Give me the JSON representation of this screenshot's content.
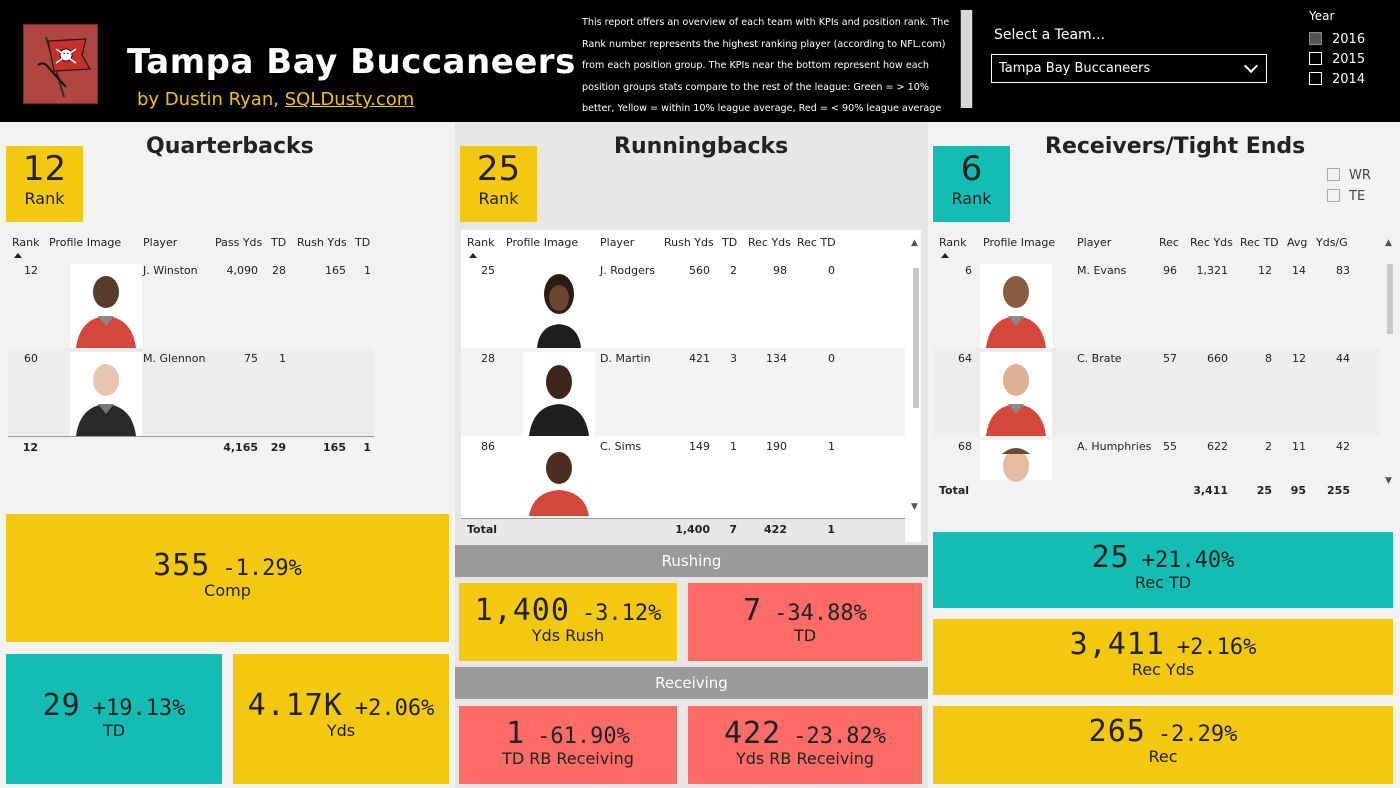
{
  "header": {
    "title": "Tampa Bay Buccaneers",
    "byline_prefix": "by Dustin Ryan,",
    "byline_link": "SQLDusty.com",
    "description": "This report offers an overview of each team with KPIs and position rank. The Rank number represents the highest ranking player (according to NFL.com) from each position group. The KPIs near the bottom represent how each position groups stats compare to the rest of the league: Green = > 10% better, Yellow = within 10% league average, Red = < 90% league average",
    "team_label": "Select a Team...",
    "team_value": "Tampa Bay Buccaneers",
    "year_label": "Year",
    "years": [
      "2016",
      "2015",
      "2014"
    ]
  },
  "qb": {
    "title": "Quarterbacks",
    "rank": "12",
    "rank_label": "Rank",
    "columns": [
      "Rank",
      "Profile Image",
      "Player",
      "Pass Yds",
      "TD",
      "Rush Yds",
      "TD"
    ],
    "rows": [
      {
        "rank": "12",
        "player": "J. Winston",
        "pass_yds": "4,090",
        "td": "28",
        "rush_yds": "165",
        "rush_td": "1"
      },
      {
        "rank": "60",
        "player": "M. Glennon",
        "pass_yds": "75",
        "td": "1",
        "rush_yds": "",
        "rush_td": ""
      }
    ],
    "total": {
      "rank": "12",
      "pass_yds": "4,165",
      "td": "29",
      "rush_yds": "165",
      "rush_td": "1"
    },
    "kpis": {
      "comp": {
        "value": "355",
        "delta": "-1.29%",
        "label": "Comp"
      },
      "td": {
        "value": "29",
        "delta": "+19.13%",
        "label": "TD"
      },
      "yds": {
        "value": "4.17K",
        "delta": "+2.06%",
        "label": "Yds"
      }
    }
  },
  "rb": {
    "title": "Runningbacks",
    "rank": "25",
    "rank_label": "Rank",
    "columns": [
      "Rank",
      "Profile Image",
      "Player",
      "Rush Yds",
      "TD",
      "Rec Yds",
      "Rec TD"
    ],
    "rows": [
      {
        "rank": "25",
        "player": "J. Rodgers",
        "rush_yds": "560",
        "td": "2",
        "rec_yds": "98",
        "rec_td": "0"
      },
      {
        "rank": "28",
        "player": "D. Martin",
        "rush_yds": "421",
        "td": "3",
        "rec_yds": "134",
        "rec_td": "0"
      },
      {
        "rank": "86",
        "player": "C. Sims",
        "rush_yds": "149",
        "td": "1",
        "rec_yds": "190",
        "rec_td": "1"
      }
    ],
    "total": {
      "label": "Total",
      "rush_yds": "1,400",
      "td": "7",
      "rec_yds": "422",
      "rec_td": "1"
    },
    "rushing_title": "Rushing",
    "receiving_title": "Receiving",
    "kpis": {
      "yds_rush": {
        "value": "1,400",
        "delta": "-3.12%",
        "label": "Yds Rush"
      },
      "td": {
        "value": "7",
        "delta": "-34.88%",
        "label": "TD"
      },
      "td_rec": {
        "value": "1",
        "delta": "-61.90%",
        "label": "TD RB Receiving"
      },
      "yds_rec": {
        "value": "422",
        "delta": "-23.82%",
        "label": "Yds RB Receiving"
      }
    }
  },
  "wr": {
    "title": "Receivers/Tight Ends",
    "rank": "6",
    "rank_label": "Rank",
    "filters": [
      "WR",
      "TE"
    ],
    "columns": [
      "Rank",
      "Profile Image",
      "Player",
      "Rec",
      "Rec Yds",
      "Rec TD",
      "Avg",
      "Yds/G"
    ],
    "rows": [
      {
        "rank": "6",
        "player": "M. Evans",
        "rec": "96",
        "rec_yds": "1,321",
        "rec_td": "12",
        "avg": "14",
        "ydsg": "83"
      },
      {
        "rank": "64",
        "player": "C. Brate",
        "rec": "57",
        "rec_yds": "660",
        "rec_td": "8",
        "avg": "12",
        "ydsg": "44"
      },
      {
        "rank": "68",
        "player": "A. Humphries",
        "rec": "55",
        "rec_yds": "622",
        "rec_td": "2",
        "avg": "11",
        "ydsg": "42"
      }
    ],
    "total": {
      "label": "Total",
      "rec_yds": "3,411",
      "rec_td": "25",
      "avg": "95",
      "ydsg": "255"
    },
    "kpis": {
      "rec_td": {
        "value": "25",
        "delta": "+21.40%",
        "label": "Rec TD"
      },
      "rec_yds": {
        "value": "3,411",
        "delta": "+2.16%",
        "label": "Rec Yds"
      },
      "rec": {
        "value": "265",
        "delta": "-2.29%",
        "label": "Rec"
      }
    }
  },
  "colors": {
    "yellow": "#f2c811",
    "teal": "#14bdb3",
    "red": "#fd6c67",
    "header": "#000000"
  }
}
